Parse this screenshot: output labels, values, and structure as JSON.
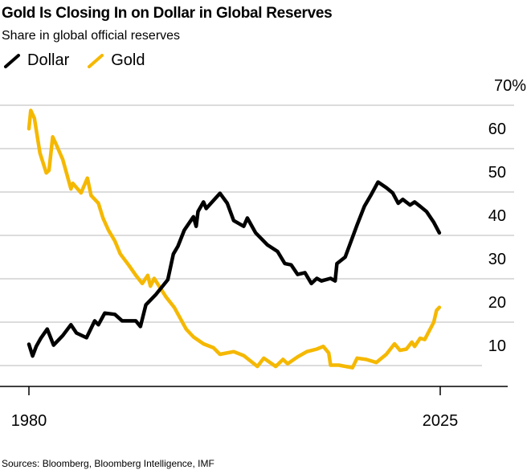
{
  "chart_data": {
    "type": "line",
    "title": "Gold Is Closing In on Dollar in Global Reserves",
    "subtitle": "Share in global official reserves",
    "source": "Sources: Bloomberg, Bloomberg Intelligence, IMF",
    "xlim": [
      1980,
      2025
    ],
    "ylim": [
      5,
      70
    ],
    "x_tick_labels": [
      "1980",
      "2025"
    ],
    "x_ticks": [
      1980,
      2025
    ],
    "y_ticks": [
      70,
      60,
      50,
      40,
      30,
      20,
      10
    ],
    "y_tick_labels": [
      "70%",
      "60",
      "50",
      "40",
      "30",
      "20",
      "10"
    ],
    "grid": true,
    "legend_placement": "top-left",
    "series": [
      {
        "name": "Dollar",
        "color": "#000000",
        "points": [
          [
            1980,
            14.9
          ],
          [
            1980.4,
            12.2
          ],
          [
            1980.8,
            14.4
          ],
          [
            1981.3,
            16.3
          ],
          [
            1982,
            18.4
          ],
          [
            1982.7,
            14.7
          ],
          [
            1983.7,
            16.9
          ],
          [
            1984.6,
            19.4
          ],
          [
            1985.2,
            17.5
          ],
          [
            1986.3,
            16.4
          ],
          [
            1987.2,
            20.3
          ],
          [
            1987.6,
            19.4
          ],
          [
            1988.3,
            22.1
          ],
          [
            1989.4,
            21.8
          ],
          [
            1990.2,
            20.3
          ],
          [
            1990.7,
            20.3
          ],
          [
            1991.7,
            20.3
          ],
          [
            1992.2,
            19.0
          ],
          [
            1992.8,
            24.0
          ],
          [
            1993.9,
            26.4
          ],
          [
            1995.2,
            29.8
          ],
          [
            1995.8,
            35.7
          ],
          [
            1996.3,
            37.5
          ],
          [
            1997,
            41.2
          ],
          [
            1998,
            44.3
          ],
          [
            1998.3,
            42.1
          ],
          [
            1998.5,
            45.5
          ],
          [
            1999.1,
            47.7
          ],
          [
            1999.4,
            46.2
          ],
          [
            2000.9,
            49.7
          ],
          [
            2001.7,
            47.4
          ],
          [
            2002.4,
            43.4
          ],
          [
            2003.5,
            42.1
          ],
          [
            2003.9,
            44.0
          ],
          [
            2004.8,
            40.6
          ],
          [
            2006.1,
            37.8
          ],
          [
            2007.2,
            36.3
          ],
          [
            2008,
            33.5
          ],
          [
            2008.7,
            33.2
          ],
          [
            2009.4,
            31.0
          ],
          [
            2010.2,
            31.4
          ],
          [
            2010.9,
            28.9
          ],
          [
            2011.5,
            30.1
          ],
          [
            2012,
            29.5
          ],
          [
            2013,
            30.1
          ],
          [
            2013.5,
            29.5
          ],
          [
            2013.7,
            33.5
          ],
          [
            2014.6,
            35.0
          ],
          [
            2015.2,
            38.4
          ],
          [
            2015.9,
            42.4
          ],
          [
            2016.7,
            46.7
          ],
          [
            2017.4,
            49.2
          ],
          [
            2018.2,
            52.3
          ],
          [
            2019.1,
            51.0
          ],
          [
            2019.8,
            49.8
          ],
          [
            2020.4,
            47.4
          ],
          [
            2020.9,
            48.3
          ],
          [
            2021.7,
            47.0
          ],
          [
            2022.2,
            47.7
          ],
          [
            2022.8,
            46.7
          ],
          [
            2023.5,
            45.5
          ],
          [
            2024.3,
            43.0
          ],
          [
            2024.9,
            40.6
          ]
        ]
      },
      {
        "name": "Gold",
        "color": "#f5b800",
        "points": [
          [
            1980,
            64.6
          ],
          [
            1980.2,
            68.8
          ],
          [
            1980.6,
            67.0
          ],
          [
            1981.2,
            59.0
          ],
          [
            1981.9,
            54.4
          ],
          [
            1982.2,
            55.0
          ],
          [
            1982.6,
            62.7
          ],
          [
            1983,
            60.9
          ],
          [
            1983.7,
            57.5
          ],
          [
            1984.6,
            50.7
          ],
          [
            1984.8,
            52.0
          ],
          [
            1985.7,
            49.8
          ],
          [
            1986.4,
            53.2
          ],
          [
            1986.8,
            49.2
          ],
          [
            1987.6,
            47.4
          ],
          [
            1988.1,
            44.0
          ],
          [
            1988.7,
            41.2
          ],
          [
            1989.4,
            38.7
          ],
          [
            1990,
            35.7
          ],
          [
            1990.9,
            33.2
          ],
          [
            1991.7,
            30.8
          ],
          [
            1992.4,
            28.9
          ],
          [
            1993,
            30.8
          ],
          [
            1993.3,
            28.3
          ],
          [
            1993.7,
            30.1
          ],
          [
            1995,
            25.8
          ],
          [
            1995.9,
            23.4
          ],
          [
            1997.2,
            18.4
          ],
          [
            1998,
            16.6
          ],
          [
            1999.1,
            15.0
          ],
          [
            2000.2,
            14.1
          ],
          [
            2000.9,
            12.6
          ],
          [
            2002.4,
            13.2
          ],
          [
            2003.5,
            12.3
          ],
          [
            2005,
            9.8
          ],
          [
            2005.7,
            11.7
          ],
          [
            2007,
            9.8
          ],
          [
            2007.8,
            11.4
          ],
          [
            2008.3,
            10.4
          ],
          [
            2009.4,
            12.0
          ],
          [
            2010.4,
            13.2
          ],
          [
            2011.5,
            13.8
          ],
          [
            2012.2,
            14.4
          ],
          [
            2012.8,
            12.9
          ],
          [
            2013,
            10.1
          ],
          [
            2013.9,
            10.1
          ],
          [
            2015.4,
            9.5
          ],
          [
            2015.9,
            11.7
          ],
          [
            2016.9,
            11.4
          ],
          [
            2018,
            10.7
          ],
          [
            2019.1,
            12.6
          ],
          [
            2020,
            15.0
          ],
          [
            2020.6,
            13.5
          ],
          [
            2021.3,
            13.8
          ],
          [
            2021.9,
            15.4
          ],
          [
            2022.2,
            14.4
          ],
          [
            2022.8,
            16.3
          ],
          [
            2023.3,
            16.0
          ],
          [
            2024.3,
            20.0
          ],
          [
            2024.6,
            22.7
          ],
          [
            2024.9,
            23.4
          ]
        ]
      }
    ]
  }
}
